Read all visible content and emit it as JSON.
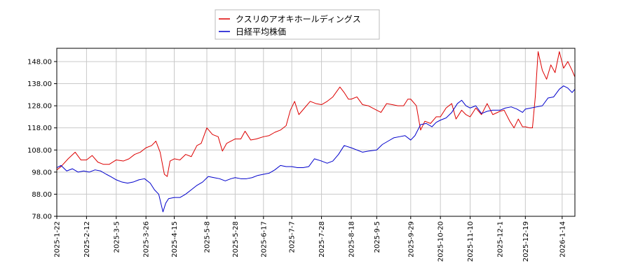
{
  "chart_data": {
    "type": "line",
    "grid": true,
    "legend_position": "top-center",
    "ylim": [
      78.0,
      154.0
    ],
    "y_ticks": [
      "78.00",
      "88.00",
      "98.00",
      "108.00",
      "118.00",
      "128.00",
      "138.00",
      "148.00"
    ],
    "x_range": [
      "2025-01-22",
      "2026-01-23"
    ],
    "x_ticks": [
      "2025-1-22",
      "2025-2-12",
      "2025-3-5",
      "2025-3-26",
      "2025-4-15",
      "2025-5-8",
      "2025-5-28",
      "2025-6-17",
      "2025-7-7",
      "2025-7-28",
      "2025-8-18",
      "2025-9-5",
      "2025-9-29",
      "2025-10-20",
      "2025-11-10",
      "2025-12-1",
      "2025-12-19",
      "2026-1-14"
    ],
    "x_tick_dates": [
      "2025-01-22",
      "2025-02-12",
      "2025-03-05",
      "2025-03-26",
      "2025-04-15",
      "2025-05-08",
      "2025-05-28",
      "2025-06-17",
      "2025-07-07",
      "2025-07-28",
      "2025-08-18",
      "2025-09-05",
      "2025-09-29",
      "2025-10-20",
      "2025-11-10",
      "2025-12-01",
      "2025-12-19",
      "2026-01-14"
    ],
    "series": [
      {
        "name": "クスリのアオキホールディングス",
        "color": "#dd0000",
        "points": [
          [
            "2025-01-22",
            99.0
          ],
          [
            "2025-01-25",
            100.5
          ],
          [
            "2025-01-30",
            104.0
          ],
          [
            "2025-02-04",
            107.0
          ],
          [
            "2025-02-08",
            103.5
          ],
          [
            "2025-02-12",
            103.5
          ],
          [
            "2025-02-16",
            105.5
          ],
          [
            "2025-02-20",
            102.5
          ],
          [
            "2025-02-24",
            101.5
          ],
          [
            "2025-02-28",
            101.5
          ],
          [
            "2025-03-05",
            103.5
          ],
          [
            "2025-03-10",
            103.0
          ],
          [
            "2025-03-14",
            104.0
          ],
          [
            "2025-03-18",
            106.0
          ],
          [
            "2025-03-22",
            107.0
          ],
          [
            "2025-03-26",
            109.0
          ],
          [
            "2025-03-30",
            110.0
          ],
          [
            "2025-04-02",
            112.0
          ],
          [
            "2025-04-05",
            107.0
          ],
          [
            "2025-04-08",
            97.0
          ],
          [
            "2025-04-10",
            96.0
          ],
          [
            "2025-04-12",
            103.0
          ],
          [
            "2025-04-15",
            104.0
          ],
          [
            "2025-04-19",
            103.5
          ],
          [
            "2025-04-23",
            106.0
          ],
          [
            "2025-04-27",
            105.0
          ],
          [
            "2025-05-01",
            110.0
          ],
          [
            "2025-05-04",
            111.0
          ],
          [
            "2025-05-08",
            118.0
          ],
          [
            "2025-05-12",
            115.0
          ],
          [
            "2025-05-16",
            114.0
          ],
          [
            "2025-05-19",
            107.5
          ],
          [
            "2025-05-22",
            111.0
          ],
          [
            "2025-05-28",
            113.0
          ],
          [
            "2025-06-01",
            113.0
          ],
          [
            "2025-06-04",
            116.5
          ],
          [
            "2025-06-08",
            112.5
          ],
          [
            "2025-06-12",
            113.0
          ],
          [
            "2025-06-17",
            114.0
          ],
          [
            "2025-06-21",
            114.5
          ],
          [
            "2025-06-25",
            116.0
          ],
          [
            "2025-06-29",
            117.0
          ],
          [
            "2025-07-03",
            119.0
          ],
          [
            "2025-07-06",
            126.0
          ],
          [
            "2025-07-09",
            130.0
          ],
          [
            "2025-07-12",
            124.0
          ],
          [
            "2025-07-16",
            127.0
          ],
          [
            "2025-07-20",
            130.0
          ],
          [
            "2025-07-24",
            129.0
          ],
          [
            "2025-07-28",
            128.5
          ],
          [
            "2025-08-01",
            130.0
          ],
          [
            "2025-08-05",
            132.0
          ],
          [
            "2025-08-10",
            136.5
          ],
          [
            "2025-08-13",
            134.0
          ],
          [
            "2025-08-16",
            131.0
          ],
          [
            "2025-08-18",
            131.0
          ],
          [
            "2025-08-22",
            132.0
          ],
          [
            "2025-08-26",
            128.5
          ],
          [
            "2025-08-30",
            128.0
          ],
          [
            "2025-09-05",
            126.0
          ],
          [
            "2025-09-08",
            125.0
          ],
          [
            "2025-09-12",
            129.0
          ],
          [
            "2025-09-16",
            128.5
          ],
          [
            "2025-09-20",
            128.0
          ],
          [
            "2025-09-24",
            128.0
          ],
          [
            "2025-09-27",
            131.0
          ],
          [
            "2025-09-29",
            131.0
          ],
          [
            "2025-10-03",
            128.0
          ],
          [
            "2025-10-06",
            117.0
          ],
          [
            "2025-10-09",
            121.0
          ],
          [
            "2025-10-13",
            120.0
          ],
          [
            "2025-10-17",
            123.0
          ],
          [
            "2025-10-20",
            123.0
          ],
          [
            "2025-10-24",
            127.0
          ],
          [
            "2025-10-28",
            129.0
          ],
          [
            "2025-10-31",
            122.0
          ],
          [
            "2025-11-04",
            126.0
          ],
          [
            "2025-11-07",
            124.0
          ],
          [
            "2025-11-10",
            123.0
          ],
          [
            "2025-11-14",
            127.0
          ],
          [
            "2025-11-18",
            124.0
          ],
          [
            "2025-11-22",
            129.0
          ],
          [
            "2025-11-26",
            124.0
          ],
          [
            "2025-12-01",
            125.5
          ],
          [
            "2025-12-04",
            126.0
          ],
          [
            "2025-12-08",
            121.0
          ],
          [
            "2025-12-11",
            118.0
          ],
          [
            "2025-12-14",
            122.0
          ],
          [
            "2025-12-17",
            118.5
          ],
          [
            "2025-12-19",
            118.5
          ],
          [
            "2025-12-22",
            118.0
          ],
          [
            "2025-12-24",
            118.0
          ],
          [
            "2025-12-26",
            132.0
          ],
          [
            "2025-12-28",
            152.5
          ],
          [
            "2025-12-31",
            144.0
          ],
          [
            "2026-01-03",
            140.0
          ],
          [
            "2026-01-06",
            146.5
          ],
          [
            "2026-01-09",
            143.0
          ],
          [
            "2026-01-12",
            152.5
          ],
          [
            "2026-01-15",
            145.0
          ],
          [
            "2026-01-18",
            148.0
          ],
          [
            "2026-01-21",
            144.0
          ],
          [
            "2026-01-23",
            141.0
          ]
        ]
      },
      {
        "name": "日経平均株価",
        "color": "#0000cc",
        "points": [
          [
            "2025-01-22",
            100.0
          ],
          [
            "2025-01-25",
            101.0
          ],
          [
            "2025-01-29",
            98.5
          ],
          [
            "2025-02-02",
            99.5
          ],
          [
            "2025-02-06",
            98.0
          ],
          [
            "2025-02-10",
            98.5
          ],
          [
            "2025-02-14",
            98.0
          ],
          [
            "2025-02-18",
            99.0
          ],
          [
            "2025-02-22",
            98.5
          ],
          [
            "2025-02-26",
            97.0
          ],
          [
            "2025-03-01",
            96.0
          ],
          [
            "2025-03-05",
            94.5
          ],
          [
            "2025-03-09",
            93.5
          ],
          [
            "2025-03-13",
            93.0
          ],
          [
            "2025-03-17",
            93.5
          ],
          [
            "2025-03-21",
            94.5
          ],
          [
            "2025-03-25",
            95.0
          ],
          [
            "2025-03-29",
            93.0
          ],
          [
            "2025-04-01",
            90.0
          ],
          [
            "2025-04-04",
            88.0
          ],
          [
            "2025-04-07",
            80.0
          ],
          [
            "2025-04-09",
            84.0
          ],
          [
            "2025-04-11",
            86.0
          ],
          [
            "2025-04-15",
            86.5
          ],
          [
            "2025-04-19",
            86.5
          ],
          [
            "2025-04-23",
            88.0
          ],
          [
            "2025-04-27",
            90.0
          ],
          [
            "2025-05-01",
            92.0
          ],
          [
            "2025-05-05",
            93.5
          ],
          [
            "2025-05-09",
            96.0
          ],
          [
            "2025-05-13",
            95.5
          ],
          [
            "2025-05-17",
            95.0
          ],
          [
            "2025-05-21",
            94.0
          ],
          [
            "2025-05-25",
            95.0
          ],
          [
            "2025-05-28",
            95.5
          ],
          [
            "2025-06-01",
            95.0
          ],
          [
            "2025-06-05",
            95.0
          ],
          [
            "2025-06-09",
            95.5
          ],
          [
            "2025-06-13",
            96.5
          ],
          [
            "2025-06-17",
            97.0
          ],
          [
            "2025-06-21",
            97.5
          ],
          [
            "2025-06-25",
            99.0
          ],
          [
            "2025-06-29",
            101.0
          ],
          [
            "2025-07-03",
            100.5
          ],
          [
            "2025-07-07",
            100.5
          ],
          [
            "2025-07-11",
            100.0
          ],
          [
            "2025-07-15",
            100.0
          ],
          [
            "2025-07-19",
            100.5
          ],
          [
            "2025-07-23",
            104.0
          ],
          [
            "2025-07-28",
            103.0
          ],
          [
            "2025-08-01",
            102.0
          ],
          [
            "2025-08-05",
            103.0
          ],
          [
            "2025-08-09",
            106.0
          ],
          [
            "2025-08-13",
            110.0
          ],
          [
            "2025-08-18",
            109.0
          ],
          [
            "2025-08-22",
            108.0
          ],
          [
            "2025-08-26",
            107.0
          ],
          [
            "2025-08-30",
            107.5
          ],
          [
            "2025-09-05",
            108.0
          ],
          [
            "2025-09-09",
            110.5
          ],
          [
            "2025-09-13",
            112.0
          ],
          [
            "2025-09-17",
            113.5
          ],
          [
            "2025-09-21",
            114.0
          ],
          [
            "2025-09-25",
            114.5
          ],
          [
            "2025-09-29",
            112.5
          ],
          [
            "2025-10-02",
            114.5
          ],
          [
            "2025-10-06",
            119.5
          ],
          [
            "2025-10-10",
            120.0
          ],
          [
            "2025-10-14",
            118.5
          ],
          [
            "2025-10-17",
            120.5
          ],
          [
            "2025-10-20",
            121.5
          ],
          [
            "2025-10-24",
            122.5
          ],
          [
            "2025-10-28",
            125.0
          ],
          [
            "2025-11-01",
            129.0
          ],
          [
            "2025-11-04",
            130.5
          ],
          [
            "2025-11-07",
            128.0
          ],
          [
            "2025-11-10",
            127.0
          ],
          [
            "2025-11-14",
            128.0
          ],
          [
            "2025-11-18",
            124.5
          ],
          [
            "2025-11-22",
            125.5
          ],
          [
            "2025-11-26",
            126.0
          ],
          [
            "2025-12-01",
            126.0
          ],
          [
            "2025-12-05",
            127.0
          ],
          [
            "2025-12-09",
            127.5
          ],
          [
            "2025-12-13",
            126.5
          ],
          [
            "2025-12-17",
            125.0
          ],
          [
            "2025-12-19",
            126.5
          ],
          [
            "2025-12-23",
            127.0
          ],
          [
            "2025-12-27",
            127.5
          ],
          [
            "2025-12-31",
            128.0
          ],
          [
            "2026-01-04",
            131.5
          ],
          [
            "2026-01-08",
            132.0
          ],
          [
            "2026-01-12",
            135.5
          ],
          [
            "2026-01-15",
            137.0
          ],
          [
            "2026-01-18",
            136.0
          ],
          [
            "2026-01-21",
            134.0
          ],
          [
            "2026-01-23",
            135.5
          ]
        ]
      }
    ]
  }
}
